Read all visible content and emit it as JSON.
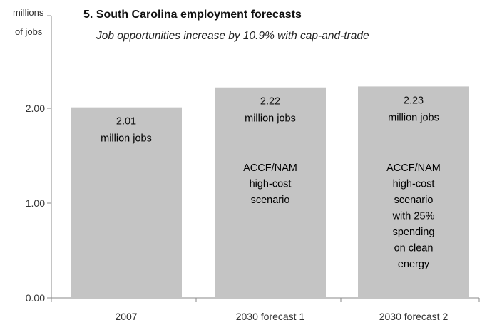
{
  "chart_data": {
    "type": "bar",
    "title": "5. South Carolina employment forecasts",
    "subtitle": "Job opportunities increase by 10.9% with cap-and-trade",
    "ylabel": "millions of jobs",
    "ylabel_lines": [
      "millions",
      "of jobs"
    ],
    "ylim": [
      0,
      2.3
    ],
    "yticks": [
      0,
      1,
      2
    ],
    "ytick_labels": [
      "0.00",
      "1.00",
      "2.00"
    ],
    "grid": false,
    "bar_color": "#c4c4c4",
    "categories": [
      "2007",
      "2030 forecast 1",
      "2030 forecast 2"
    ],
    "values": [
      2.01,
      2.22,
      2.23
    ],
    "value_labels": [
      "2.01",
      "2.22",
      "2.23"
    ],
    "unit_label": "million jobs",
    "descriptions": [
      [],
      [
        "ACCF/NAM",
        "high-cost",
        "scenario"
      ],
      [
        "ACCF/NAM",
        "high-cost",
        "scenario",
        "with 25%",
        "spending",
        "on clean",
        "energy"
      ]
    ]
  }
}
